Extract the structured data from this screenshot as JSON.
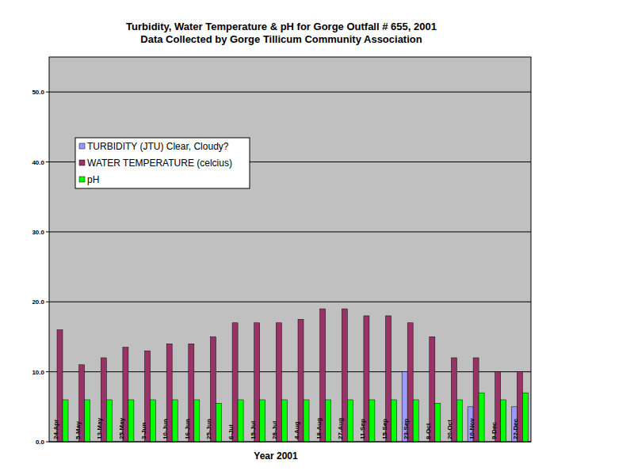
{
  "chart_data": {
    "type": "bar",
    "title": "Turbidity, Water Temperature & pH for Gorge Outfall # 655, 2001",
    "subtitle": "Data Collected by Gorge Tillicum Community Association",
    "x_label": "Year 2001",
    "categories": [
      "24-Apr",
      "5-May",
      "13-May",
      "25-May",
      "3-Jun",
      "10-Jun",
      "16-Jun",
      "25-Jun",
      "6-Jul",
      "15-Jul",
      "28-Jul",
      "4-Aug",
      "18-Aug",
      "27-Aug",
      "11-Sep",
      "15-Sep",
      "23-Sep",
      "8-Oct",
      "20-Oct",
      "10-Nov",
      "9-Dec",
      "22-Dec"
    ],
    "series": [
      {
        "name": "TURBIDITY (JTU) Clear, Cloudy?",
        "color": "#9999ff",
        "values": [
          null,
          null,
          null,
          null,
          null,
          null,
          null,
          null,
          null,
          null,
          null,
          null,
          null,
          null,
          null,
          null,
          10,
          null,
          null,
          5,
          null,
          5
        ]
      },
      {
        "name": "WATER TEMPERATURE (celcius)",
        "color": "#993366",
        "values": [
          16,
          11,
          12,
          13.5,
          13,
          14,
          14,
          15,
          17,
          17,
          17,
          17.5,
          19,
          19,
          18,
          18,
          17,
          15,
          12,
          12,
          10,
          10
        ]
      },
      {
        "name": "pH",
        "color": "#00ff00",
        "values": [
          6,
          6,
          6,
          6,
          6,
          6,
          6,
          5.5,
          6,
          6,
          6,
          6,
          6,
          6,
          6,
          6,
          6,
          5.5,
          6,
          7,
          6,
          7
        ]
      }
    ],
    "ylim": [
      0,
      55
    ],
    "yticks": [
      {
        "value": 0,
        "label": "0.0"
      },
      {
        "value": 10,
        "label": "10.0"
      },
      {
        "value": 20,
        "label": "20.0"
      },
      {
        "value": 30,
        "label": "30.0"
      },
      {
        "value": 40,
        "label": "40.0"
      },
      {
        "value": 50,
        "label": "50.0"
      }
    ],
    "grid": true,
    "legend": "left"
  }
}
